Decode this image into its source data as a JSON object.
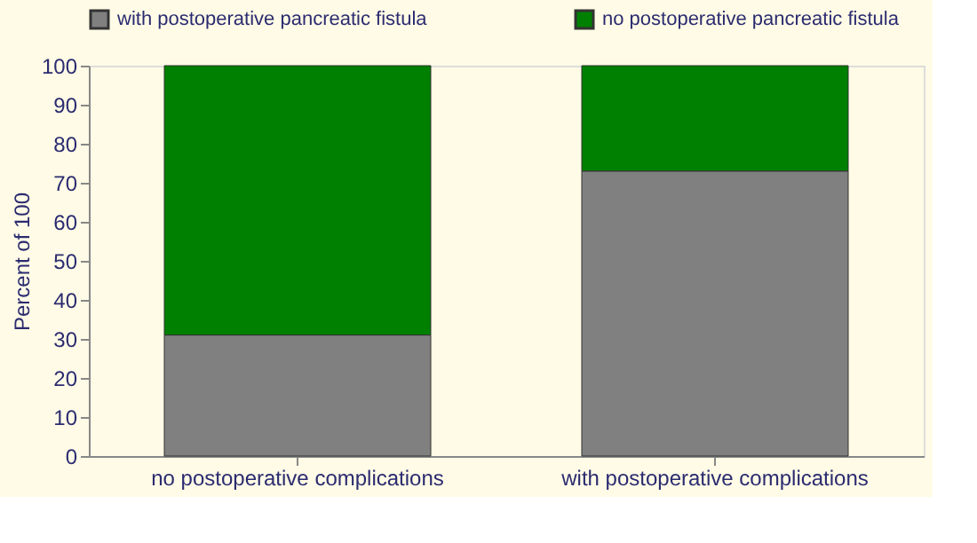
{
  "chart_data": {
    "type": "bar",
    "stacked": true,
    "ylabel": "Percent of 100",
    "categories": [
      "no postoperative complications",
      "with postoperative complications"
    ],
    "series": [
      {
        "name": "with postoperative pancreatic fistula",
        "color": "#808080",
        "values": [
          31,
          73
        ]
      },
      {
        "name": "no postoperative pancreatic fistula",
        "color": "#008000",
        "values": [
          69,
          27
        ]
      }
    ],
    "ylim": [
      0,
      100
    ],
    "yticks": [
      0,
      10,
      20,
      30,
      40,
      50,
      60,
      70,
      80,
      90,
      100
    ],
    "grid": false,
    "legend": "top"
  }
}
